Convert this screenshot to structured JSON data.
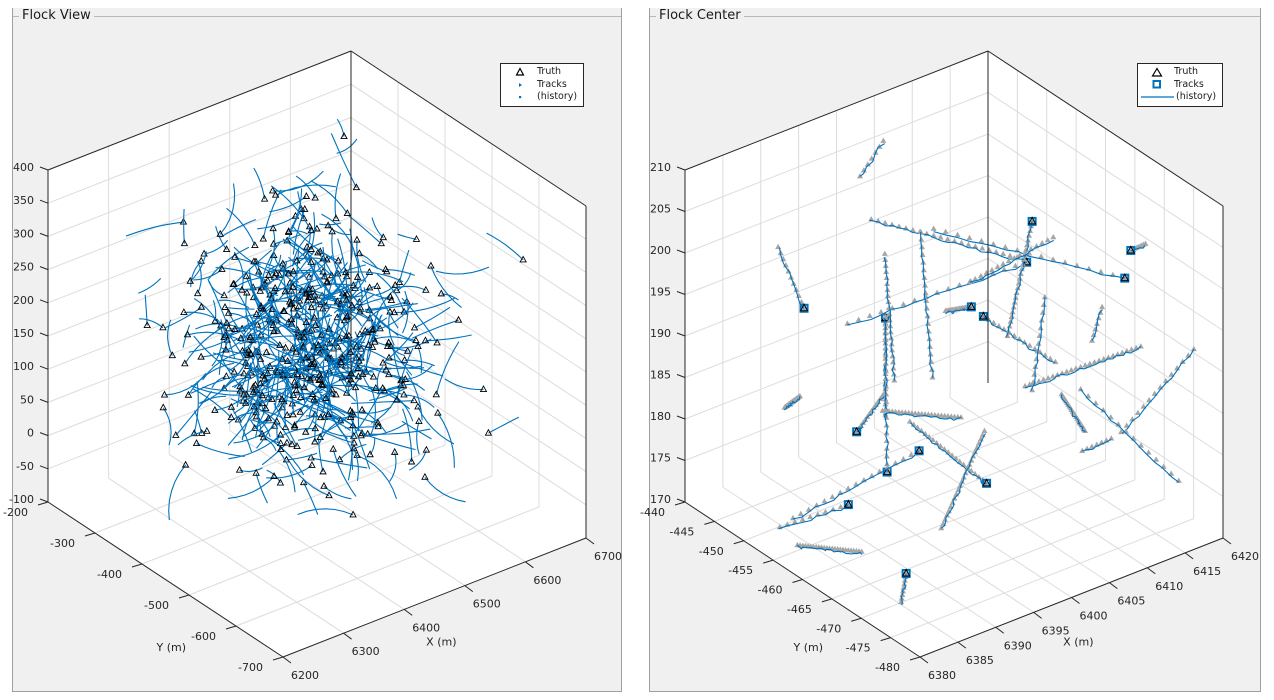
{
  "panels": [
    {
      "title": "Flock View",
      "legend": [
        {
          "label": "Truth",
          "icon": "triangle-marker-icon"
        },
        {
          "label": "Tracks",
          "icon": "dot-marker-icon"
        },
        {
          "label": "(history)",
          "icon": "dot-marker-icon"
        }
      ]
    },
    {
      "title": "Flock Center",
      "legend": [
        {
          "label": "Truth",
          "icon": "triangle-marker-icon"
        },
        {
          "label": "Tracks",
          "icon": "square-marker-icon"
        },
        {
          "label": "(history)",
          "icon": "line-marker-icon"
        }
      ]
    }
  ],
  "colors": {
    "track": "#0072bd",
    "truth": "#000000",
    "history_truth": "#a6a6a6",
    "grid": "#dcdcdc",
    "panel_bg": "#f0f0f0"
  },
  "chart_data": [
    {
      "type": "scatter3d",
      "title": "Flock View",
      "xlabel": "X (m)",
      "ylabel": "Y (m)",
      "zlabel": "",
      "xlim": [
        6200,
        6700
      ],
      "ylim": [
        -700,
        -200
      ],
      "zlim": [
        -100,
        400
      ],
      "xticks": [
        "6200",
        "6300",
        "6400",
        "6500",
        "6600",
        "6700"
      ],
      "yticks": [
        "-200",
        "-300",
        "-400",
        "-500",
        "-600",
        "-700"
      ],
      "zticks": [
        "400",
        "350",
        "300",
        "250",
        "200",
        "150",
        "100",
        "50",
        "0",
        "-50",
        "-100"
      ],
      "grid": true,
      "legend_position": "top-right",
      "series": [
        {
          "name": "Truth",
          "marker": "triangle",
          "approx_count": 500
        },
        {
          "name": "Tracks",
          "marker": "point",
          "approx_count": 500
        },
        {
          "name": "(history)",
          "marker": "point-trail"
        }
      ],
      "seed": 7
    },
    {
      "type": "scatter3d",
      "title": "Flock Center",
      "xlabel": "X (m)",
      "ylabel": "Y (m)",
      "zlabel": "",
      "xlim": [
        6380,
        6420
      ],
      "ylim": [
        -480,
        -440
      ],
      "zlim": [
        170,
        210
      ],
      "xticks": [
        "6380",
        "6385",
        "6390",
        "6395",
        "6400",
        "6405",
        "6410",
        "6415",
        "6420"
      ],
      "yticks": [
        "-440",
        "-445",
        "-450",
        "-455",
        "-460",
        "-465",
        "-470",
        "-475",
        "-480"
      ],
      "zticks": [
        "210",
        "205",
        "200",
        "195",
        "190",
        "185",
        "180",
        "175",
        "170"
      ],
      "grid": true,
      "legend_position": "top-right",
      "series": [
        {
          "name": "Truth",
          "marker": "triangle",
          "approx_count": 14
        },
        {
          "name": "Tracks",
          "marker": "square",
          "approx_count": 14
        },
        {
          "name": "(history)",
          "marker": "line"
        }
      ],
      "seed": 13
    }
  ]
}
